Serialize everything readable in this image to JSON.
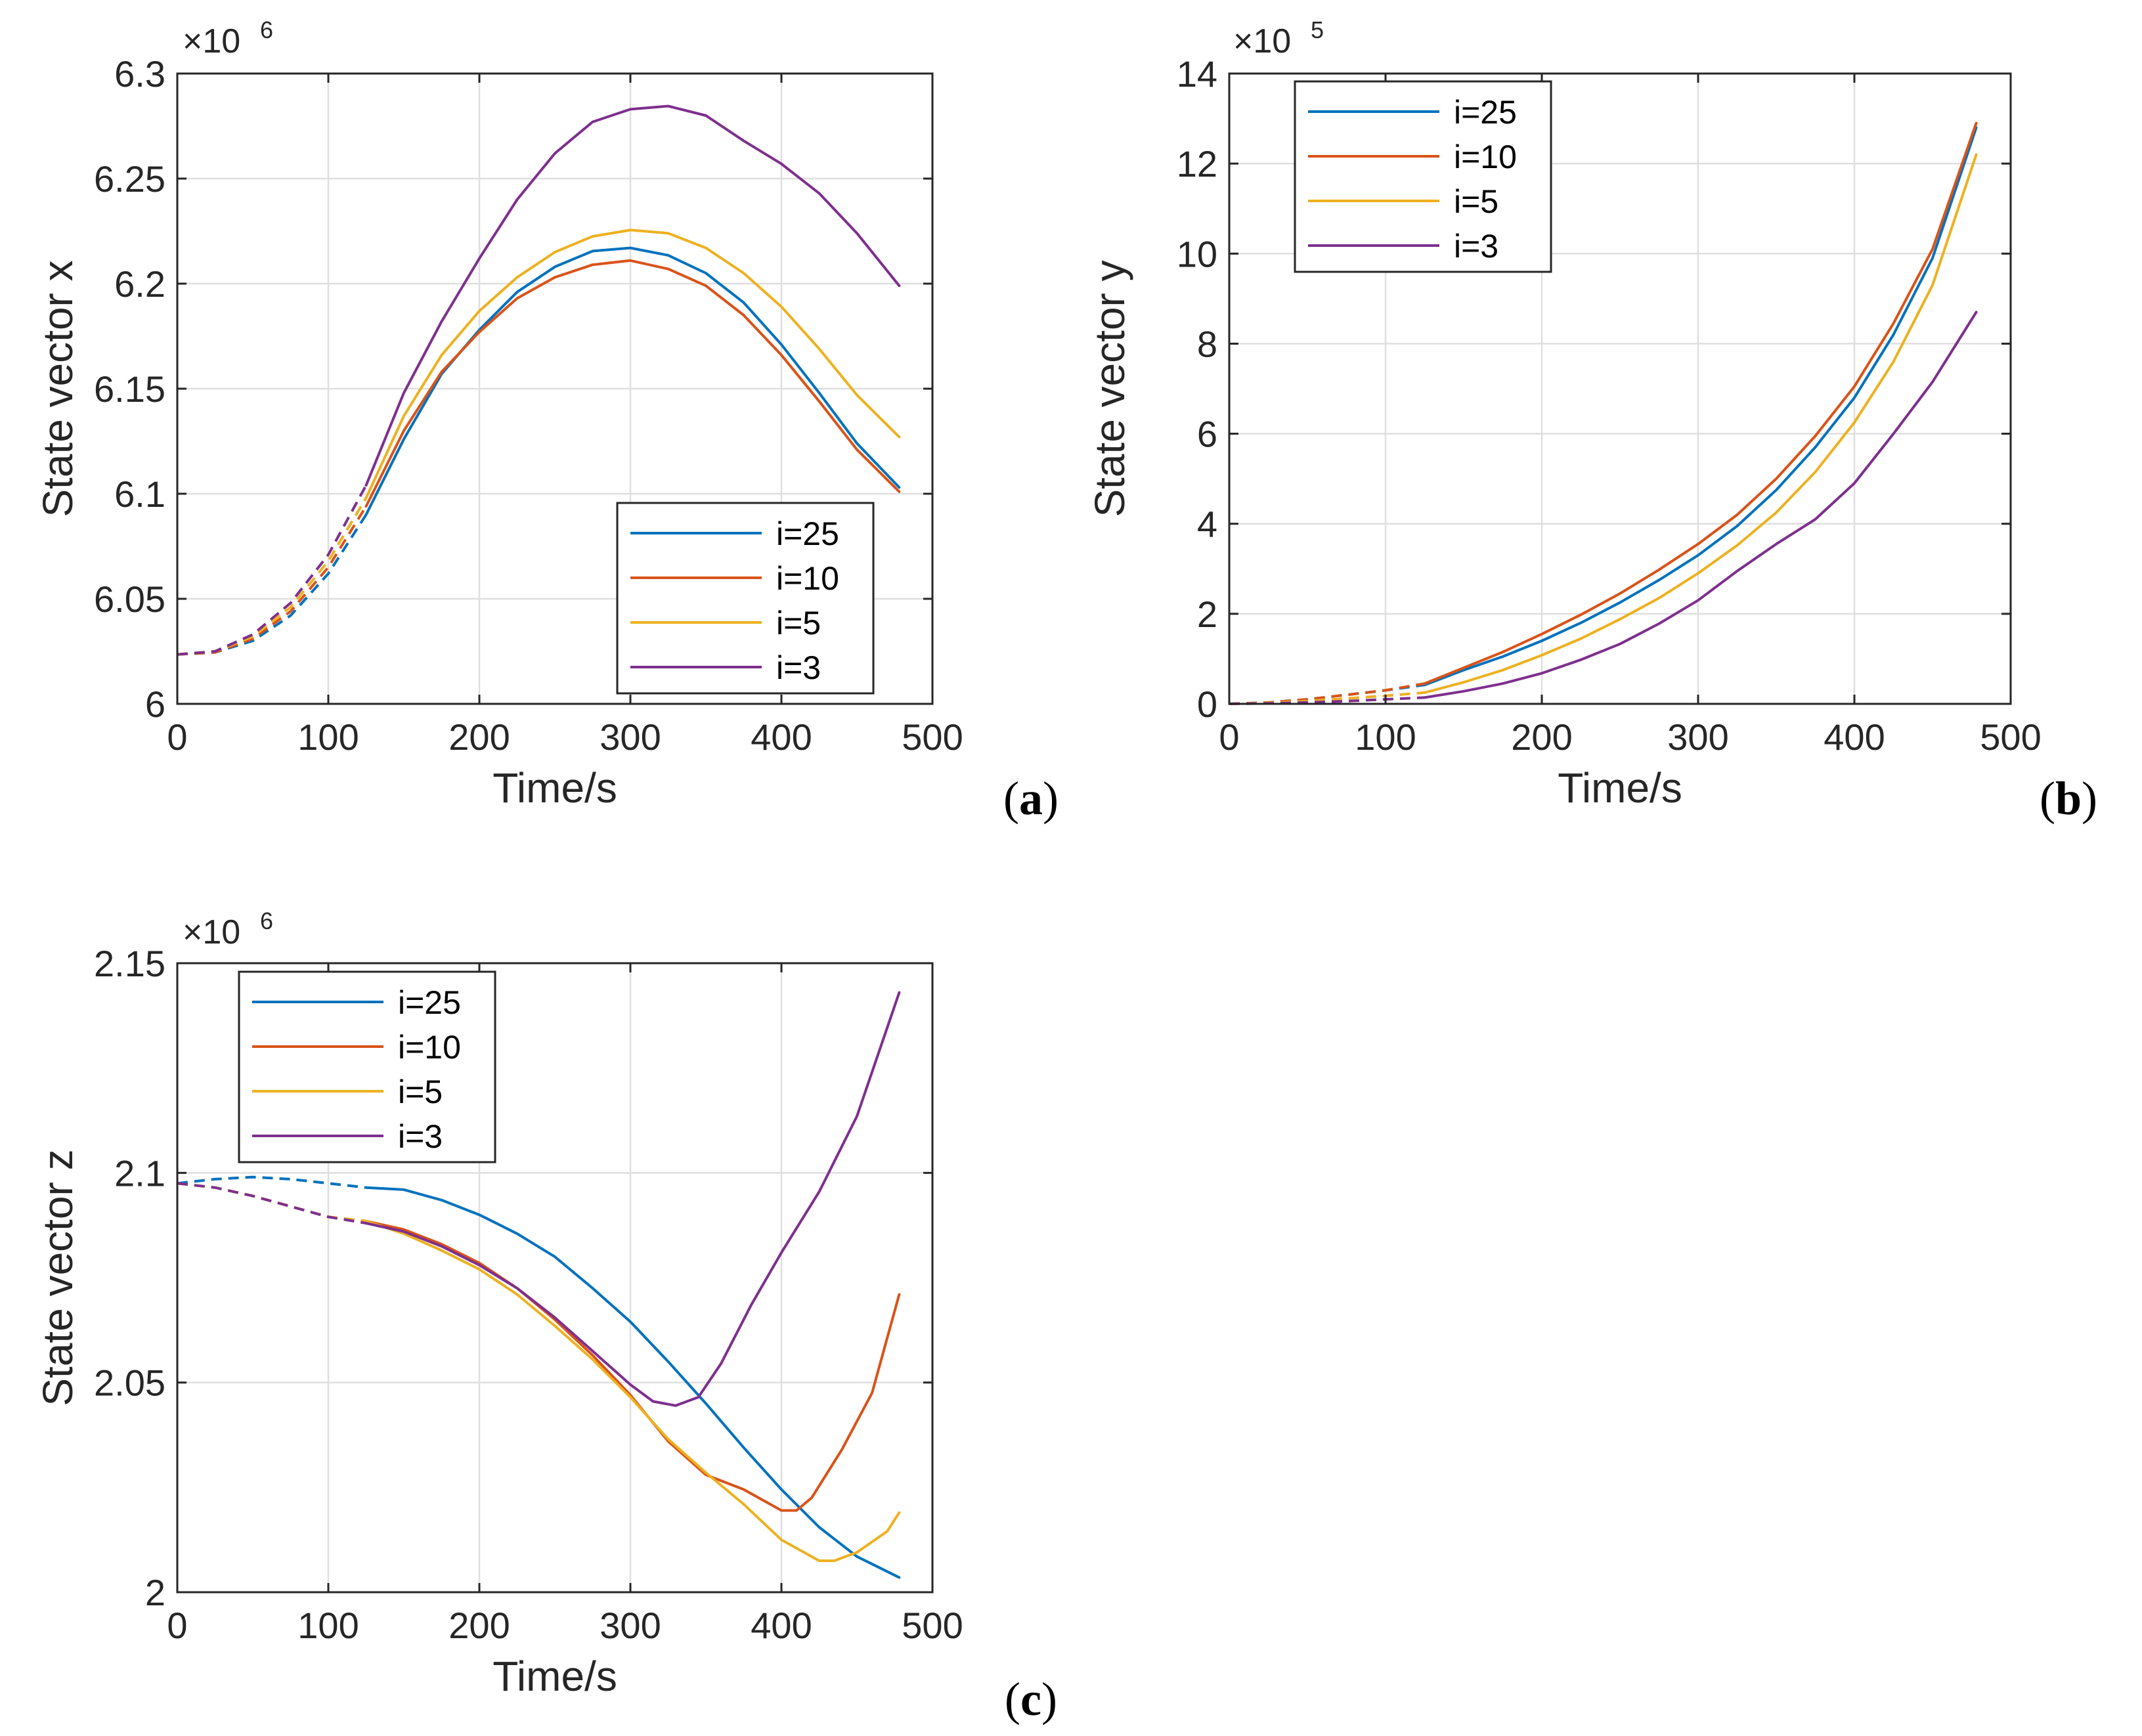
{
  "chart_data": [
    {
      "id": "a",
      "type": "line",
      "panel_label": "a",
      "xlabel": "Time/s",
      "ylabel": "State vector x",
      "xlim": [
        0,
        500
      ],
      "ylim": [
        6.0,
        6.3
      ],
      "xticks": [
        0,
        100,
        200,
        300,
        400,
        500
      ],
      "yticks": [
        6.0,
        6.05,
        6.1,
        6.15,
        6.2,
        6.25,
        6.3
      ],
      "ytick_labels": [
        "6",
        "6.05",
        "6.1",
        "6.15",
        "6.2",
        "6.25",
        "6.3"
      ],
      "multiplier": "×10",
      "multiplier_exp": "6",
      "legend_position": "bottom-right",
      "grid": true,
      "dashed_until_x": 125,
      "series": [
        {
          "name": "i=25",
          "color": "#0072BD",
          "x": [
            0,
            25,
            50,
            75,
            100,
            125,
            150,
            175,
            200,
            225,
            250,
            275,
            300,
            325,
            350,
            375,
            400,
            425,
            450,
            478
          ],
          "y": [
            6.0235,
            6.0245,
            6.03,
            6.042,
            6.062,
            6.09,
            6.126,
            6.157,
            6.178,
            6.196,
            6.208,
            6.2155,
            6.217,
            6.2135,
            6.205,
            6.191,
            6.171,
            6.148,
            6.124,
            6.103
          ]
        },
        {
          "name": "i=10",
          "color": "#D95319",
          "x": [
            0,
            25,
            50,
            75,
            100,
            125,
            150,
            175,
            200,
            225,
            250,
            275,
            300,
            325,
            350,
            375,
            400,
            425,
            450,
            478
          ],
          "y": [
            6.0235,
            6.0245,
            6.031,
            6.044,
            6.065,
            6.094,
            6.13,
            6.158,
            6.177,
            6.193,
            6.203,
            6.209,
            6.211,
            6.207,
            6.199,
            6.185,
            6.166,
            6.144,
            6.121,
            6.101
          ]
        },
        {
          "name": "i=5",
          "color": "#EDB120",
          "x": [
            0,
            25,
            50,
            75,
            100,
            125,
            150,
            175,
            200,
            225,
            250,
            275,
            300,
            325,
            350,
            375,
            400,
            425,
            450,
            478
          ],
          "y": [
            6.0235,
            6.025,
            6.032,
            6.046,
            6.068,
            6.098,
            6.137,
            6.166,
            6.187,
            6.203,
            6.215,
            6.2225,
            6.2255,
            6.224,
            6.217,
            6.205,
            6.189,
            6.169,
            6.147,
            6.127
          ]
        },
        {
          "name": "i=3",
          "color": "#7E2F8E",
          "x": [
            0,
            25,
            50,
            75,
            100,
            125,
            150,
            175,
            200,
            225,
            250,
            275,
            300,
            325,
            350,
            375,
            400,
            425,
            450,
            478
          ],
          "y": [
            6.0235,
            6.025,
            6.033,
            6.048,
            6.071,
            6.104,
            6.148,
            6.182,
            6.212,
            6.24,
            6.262,
            6.277,
            6.283,
            6.2845,
            6.28,
            6.268,
            6.257,
            6.243,
            6.224,
            6.199
          ]
        }
      ]
    },
    {
      "id": "b",
      "type": "line",
      "panel_label": "b",
      "xlabel": "Time/s",
      "ylabel": "State vector y",
      "xlim": [
        0,
        500
      ],
      "ylim": [
        0,
        14
      ],
      "xticks": [
        0,
        100,
        200,
        300,
        400,
        500
      ],
      "yticks": [
        0,
        2,
        4,
        6,
        8,
        10,
        12,
        14
      ],
      "ytick_labels": [
        "0",
        "2",
        "4",
        "6",
        "8",
        "10",
        "12",
        "14"
      ],
      "multiplier": "×10",
      "multiplier_exp": "5",
      "legend_position": "top-left",
      "grid": true,
      "dashed_until_x": 125,
      "series": [
        {
          "name": "i=25",
          "color": "#0072BD",
          "x": [
            0,
            25,
            50,
            75,
            100,
            125,
            150,
            175,
            200,
            225,
            250,
            275,
            300,
            325,
            350,
            375,
            400,
            425,
            450,
            478
          ],
          "y": [
            0,
            0.03,
            0.1,
            0.2,
            0.3,
            0.42,
            0.75,
            1.05,
            1.4,
            1.8,
            2.25,
            2.75,
            3.3,
            3.95,
            4.75,
            5.7,
            6.8,
            8.2,
            9.9,
            12.8
          ]
        },
        {
          "name": "i=10",
          "color": "#D95319",
          "x": [
            0,
            25,
            50,
            75,
            100,
            125,
            150,
            175,
            200,
            225,
            250,
            275,
            300,
            325,
            350,
            375,
            400,
            425,
            450,
            478
          ],
          "y": [
            0,
            0.03,
            0.1,
            0.2,
            0.3,
            0.45,
            0.8,
            1.15,
            1.55,
            1.98,
            2.45,
            2.98,
            3.55,
            4.2,
            5.0,
            5.95,
            7.05,
            8.45,
            10.1,
            12.9
          ]
        },
        {
          "name": "i=5",
          "color": "#EDB120",
          "x": [
            0,
            25,
            50,
            75,
            100,
            125,
            150,
            175,
            200,
            225,
            250,
            275,
            300,
            325,
            350,
            375,
            400,
            425,
            450,
            478
          ],
          "y": [
            0,
            0.02,
            0.06,
            0.12,
            0.18,
            0.25,
            0.48,
            0.75,
            1.08,
            1.45,
            1.88,
            2.35,
            2.9,
            3.52,
            4.25,
            5.15,
            6.25,
            7.6,
            9.3,
            12.2
          ]
        },
        {
          "name": "i=3",
          "color": "#7E2F8E",
          "x": [
            0,
            25,
            50,
            75,
            100,
            125,
            150,
            175,
            200,
            225,
            250,
            275,
            300,
            325,
            350,
            375,
            400,
            425,
            450,
            478
          ],
          "y": [
            0,
            0.01,
            0.03,
            0.06,
            0.1,
            0.14,
            0.28,
            0.45,
            0.68,
            0.98,
            1.33,
            1.78,
            2.3,
            2.95,
            3.55,
            4.1,
            4.9,
            6.0,
            7.15,
            8.7
          ]
        }
      ]
    },
    {
      "id": "c",
      "type": "line",
      "panel_label": "c",
      "xlabel": "Time/s",
      "ylabel": "State vector z",
      "xlim": [
        0,
        500
      ],
      "ylim": [
        2.0,
        2.15
      ],
      "xticks": [
        0,
        100,
        200,
        300,
        400,
        500
      ],
      "yticks": [
        2.0,
        2.05,
        2.1,
        2.15
      ],
      "ytick_labels": [
        "2",
        "2.05",
        "2.1",
        "2.15"
      ],
      "multiplier": "×10",
      "multiplier_exp": "6",
      "legend_position": "top-left",
      "grid": true,
      "dashed_until_x": 125,
      "series": [
        {
          "name": "i=25",
          "color": "#0072BD",
          "x": [
            0,
            25,
            50,
            75,
            100,
            125,
            150,
            175,
            200,
            225,
            250,
            275,
            300,
            325,
            350,
            375,
            400,
            425,
            450,
            478
          ],
          "y": [
            2.0975,
            2.0985,
            2.099,
            2.0985,
            2.0975,
            2.0965,
            2.096,
            2.0935,
            2.09,
            2.0855,
            2.08,
            2.0725,
            2.0645,
            2.055,
            2.045,
            2.0345,
            2.0245,
            2.0155,
            2.0085,
            2.0035
          ]
        },
        {
          "name": "i=10",
          "color": "#D95319",
          "x": [
            0,
            25,
            50,
            75,
            100,
            125,
            150,
            175,
            200,
            225,
            250,
            275,
            300,
            325,
            350,
            375,
            400,
            410,
            420,
            440,
            460,
            478
          ],
          "y": [
            2.0975,
            2.0965,
            2.0945,
            2.092,
            2.0895,
            2.0885,
            2.0865,
            2.083,
            2.0785,
            2.0725,
            2.065,
            2.0565,
            2.047,
            2.036,
            2.028,
            2.0245,
            2.0195,
            2.0195,
            2.0225,
            2.034,
            2.0475,
            2.071
          ]
        },
        {
          "name": "i=5",
          "color": "#EDB120",
          "x": [
            0,
            25,
            50,
            75,
            100,
            125,
            150,
            175,
            200,
            225,
            250,
            275,
            300,
            325,
            350,
            375,
            400,
            425,
            435,
            450,
            470,
            478
          ],
          "y": [
            2.0975,
            2.0965,
            2.0945,
            2.092,
            2.0895,
            2.0885,
            2.0855,
            2.0815,
            2.077,
            2.071,
            2.0635,
            2.0555,
            2.0465,
            2.0365,
            2.0285,
            2.021,
            2.0125,
            2.0075,
            2.0075,
            2.0095,
            2.0145,
            2.019
          ]
        },
        {
          "name": "i=3",
          "color": "#7E2F8E",
          "x": [
            0,
            25,
            50,
            75,
            100,
            125,
            150,
            175,
            200,
            225,
            250,
            275,
            300,
            315,
            330,
            345,
            360,
            380,
            400,
            425,
            450,
            478
          ],
          "y": [
            2.0975,
            2.0965,
            2.0945,
            2.092,
            2.0895,
            2.088,
            2.086,
            2.0825,
            2.078,
            2.0725,
            2.0655,
            2.0575,
            2.0495,
            2.0455,
            2.0445,
            2.0465,
            2.0545,
            2.0685,
            2.081,
            2.0955,
            2.1135,
            2.143
          ]
        }
      ]
    }
  ]
}
